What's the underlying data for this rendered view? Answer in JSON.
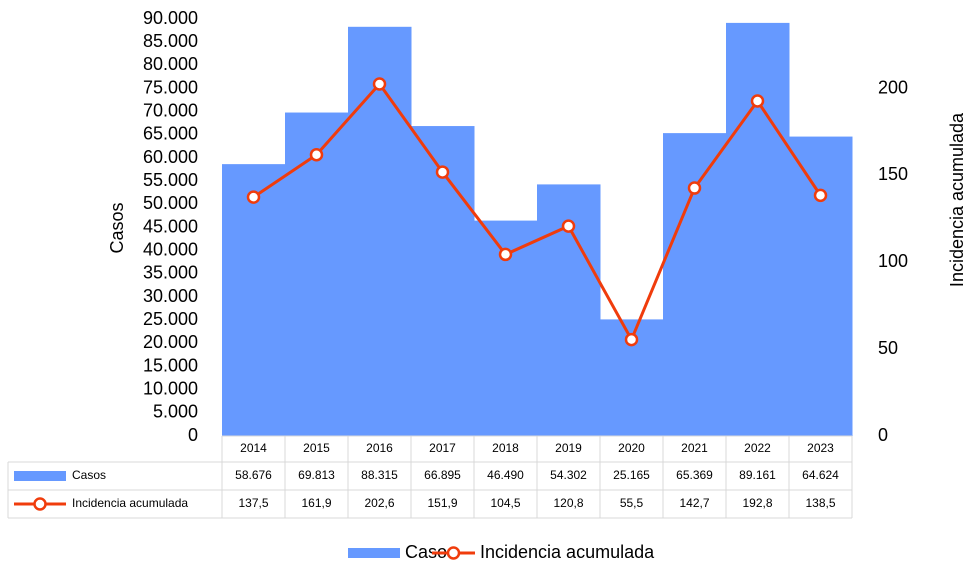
{
  "chart_data": {
    "type": "bar",
    "categories": [
      "2014",
      "2015",
      "2016",
      "2017",
      "2018",
      "2019",
      "2020",
      "2021",
      "2022",
      "2023"
    ],
    "series": [
      {
        "name": "Casos",
        "type": "bar",
        "color": "#6699ff",
        "values": [
          58676,
          69813,
          88315,
          66895,
          46490,
          54302,
          25165,
          65369,
          89161,
          64624
        ],
        "value_labels": [
          "58.676",
          "69.813",
          "88.315",
          "66.895",
          "46.490",
          "54.302",
          "25.165",
          "65.369",
          "89.161",
          "64.624"
        ]
      },
      {
        "name": "Incidencia acumulada",
        "type": "line",
        "axis": "y2",
        "color": "#f03c0c",
        "values": [
          137.5,
          161.9,
          202.6,
          151.9,
          104.5,
          120.8,
          55.5,
          142.7,
          192.8,
          138.5
        ],
        "value_labels": [
          "137,5",
          "161,9",
          "202,6",
          "151,9",
          "104,5",
          "120,8",
          "55,5",
          "142,7",
          "192,8",
          "138,5"
        ]
      }
    ],
    "ylabel": "Casos",
    "y2label": "Incidencia acumulada",
    "ylim": [
      0,
      90000
    ],
    "yticks": [
      0,
      {
        "value": 5000,
        "label": "5.000"
      },
      {
        "value": 10000,
        "label": "10.000"
      },
      {
        "value": 15000,
        "label": "15.000"
      },
      {
        "value": 20000,
        "label": "20.000"
      },
      {
        "value": 25000,
        "label": "25.000"
      },
      {
        "value": 30000,
        "label": "30.000"
      },
      {
        "value": 35000,
        "label": "35.000"
      },
      {
        "value": 40000,
        "label": "40.000"
      },
      {
        "value": 45000,
        "label": "45.000"
      },
      {
        "value": 50000,
        "label": "50.000"
      },
      {
        "value": 55000,
        "label": "55.000"
      },
      {
        "value": 60000,
        "label": "60.000"
      },
      {
        "value": 65000,
        "label": "65.000"
      },
      {
        "value": 70000,
        "label": "70.000"
      },
      {
        "value": 75000,
        "label": "75.000"
      },
      {
        "value": 80000,
        "label": "80.000"
      },
      {
        "value": 85000,
        "label": "85.000"
      },
      {
        "value": 90000,
        "label": "90.000"
      }
    ],
    "y2lim": [
      0,
      240
    ],
    "y2ticks": [
      0,
      50,
      100,
      150,
      200
    ],
    "legend": "bottom"
  }
}
